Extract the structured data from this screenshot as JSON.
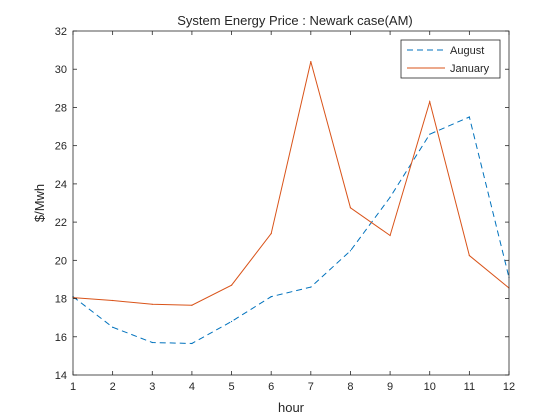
{
  "chart_data": {
    "type": "line",
    "title": "System Energy Price : Newark case(AM)",
    "xlabel": "hour",
    "ylabel": "$/Mwh",
    "xlim": [
      1,
      12
    ],
    "ylim": [
      14,
      32
    ],
    "xticks": [
      1,
      2,
      3,
      4,
      5,
      6,
      7,
      8,
      9,
      10,
      11,
      12
    ],
    "yticks": [
      14,
      16,
      18,
      20,
      22,
      24,
      26,
      28,
      30,
      32
    ],
    "grid": false,
    "legend_position": "top-right",
    "x": [
      1,
      2,
      3,
      4,
      5,
      6,
      7,
      8,
      9,
      10,
      11,
      12
    ],
    "series": [
      {
        "name": "August",
        "style": "dashed",
        "color": "#0072BD",
        "values": [
          18.1,
          16.5,
          15.7,
          15.65,
          16.8,
          18.1,
          18.6,
          20.5,
          23.3,
          26.6,
          27.5,
          19.1
        ]
      },
      {
        "name": "January",
        "style": "solid",
        "color": "#D95319",
        "values": [
          18.05,
          17.9,
          17.7,
          17.65,
          18.7,
          21.4,
          30.4,
          22.75,
          21.3,
          28.3,
          20.25,
          18.55
        ]
      }
    ]
  }
}
